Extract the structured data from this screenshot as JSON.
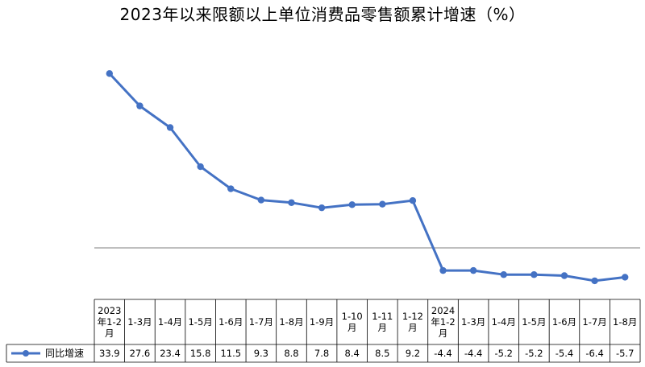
{
  "chart_data": {
    "type": "line",
    "title": "2023年以来限额以上单位消费品零售额累计增速（%）",
    "categories": [
      [
        "2023",
        "年1-2",
        "月"
      ],
      [
        "1-3月"
      ],
      [
        "1-4月"
      ],
      [
        "1-5月"
      ],
      [
        "1-6月"
      ],
      [
        "1-7月"
      ],
      [
        "1-8月"
      ],
      [
        "1-9月"
      ],
      [
        "1-10",
        "月"
      ],
      [
        "1-11",
        "月"
      ],
      [
        "1-12",
        "月"
      ],
      [
        "2024",
        "年1-2",
        "月"
      ],
      [
        "1-3月"
      ],
      [
        "1-4月"
      ],
      [
        "1-5月"
      ],
      [
        "1-6月"
      ],
      [
        "1-7月"
      ],
      [
        "1-8月"
      ]
    ],
    "series": [
      {
        "name": "同比增速",
        "values": [
          33.9,
          27.6,
          23.4,
          15.8,
          11.5,
          9.3,
          8.8,
          7.8,
          8.4,
          8.5,
          9.2,
          -4.4,
          -4.4,
          -5.2,
          -5.2,
          -5.4,
          -6.4,
          -5.7
        ]
      }
    ],
    "ylim": [
      -8,
      36
    ],
    "grid": false,
    "data_table": true,
    "legend": "in data table",
    "line_color": "#4472C4"
  }
}
